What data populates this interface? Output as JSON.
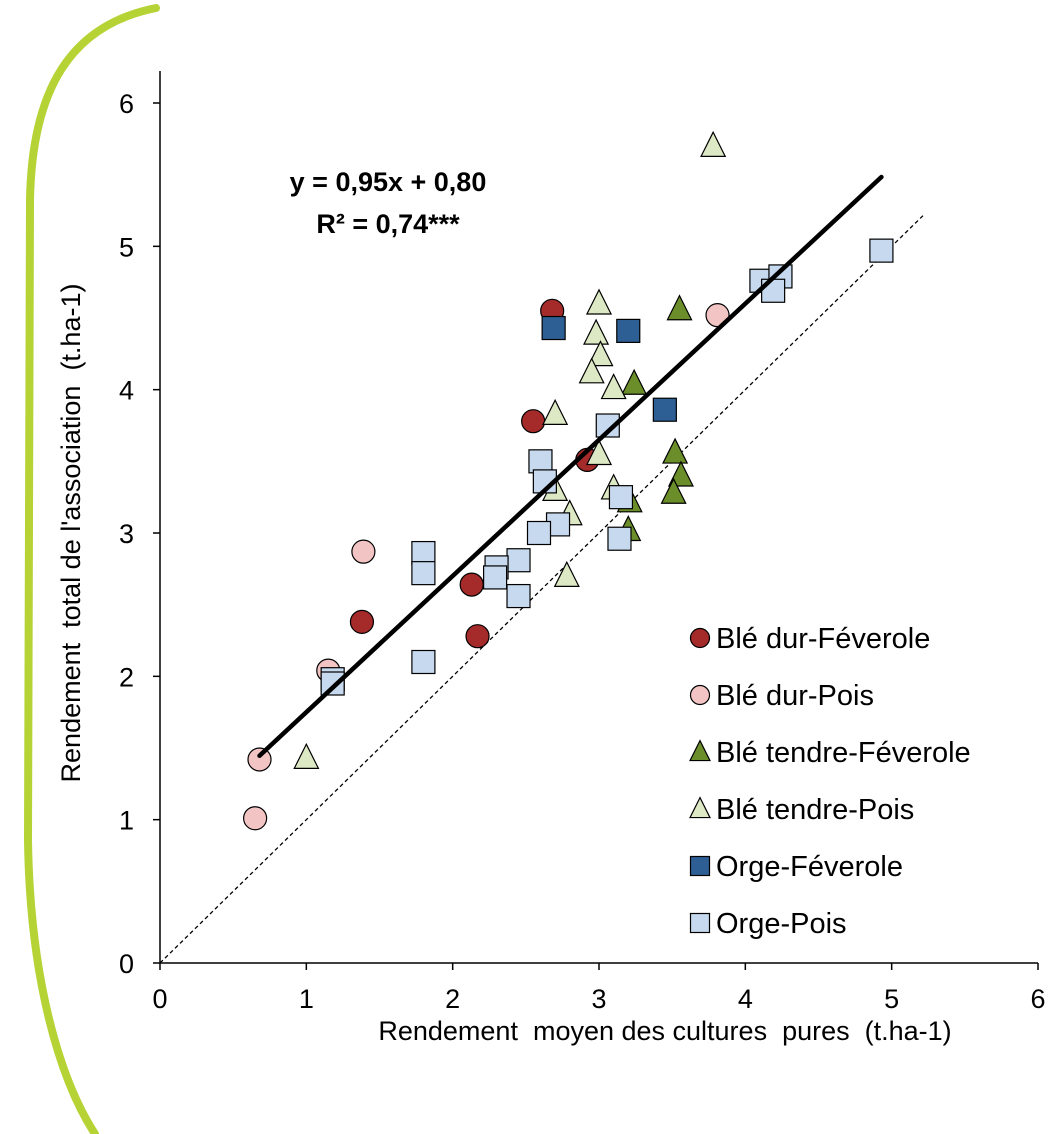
{
  "chart_data": {
    "type": "scatter",
    "xlabel": "Rendement  moyen des cultures  pures  (t.ha-1)",
    "ylabel": "Rendement  total de l'association  (t.ha-1)",
    "xlim": [
      0,
      6
    ],
    "ylim": [
      0,
      6
    ],
    "xticks": [
      "0",
      "1",
      "2",
      "3",
      "4",
      "5",
      "6"
    ],
    "yticks": [
      "0",
      "1",
      "2",
      "3",
      "4",
      "5",
      "6"
    ],
    "grid": false,
    "legend_position": "bottom-right",
    "annotation": {
      "equation": "y = 0,95x + 0,80",
      "r2": "R² = 0,74***"
    },
    "regression": {
      "slope": 0.95,
      "intercept": 0.8,
      "x_range": [
        0.68,
        4.93
      ],
      "color": "#000000"
    },
    "identity_line": {
      "slope": 1,
      "intercept": 0,
      "style": "dashed"
    },
    "series": [
      {
        "name": "Blé dur-Féverole",
        "marker": "circle",
        "color": "#a52a2a",
        "x": [
          2.68,
          2.55,
          2.92,
          1.38,
          2.13,
          2.17
        ],
        "y": [
          4.55,
          3.78,
          3.51,
          2.38,
          2.64,
          2.28
        ]
      },
      {
        "name": "Blé dur-Pois",
        "marker": "circle",
        "color": "#f2c4c4",
        "x": [
          1.39,
          1.15,
          0.68,
          0.65,
          3.81
        ],
        "y": [
          2.87,
          2.04,
          1.42,
          1.01,
          4.52
        ]
      },
      {
        "name": "Blé tendre-Féverole",
        "marker": "triangle",
        "color": "#6b8e2a",
        "x": [
          3.55,
          3.24,
          3.52,
          3.56,
          3.51,
          3.21,
          3.2
        ],
        "y": [
          4.56,
          4.04,
          3.56,
          3.4,
          3.28,
          3.22,
          3.02
        ]
      },
      {
        "name": "Blé tendre-Pois",
        "marker": "triangle",
        "color": "#dde8c4",
        "x": [
          3.78,
          3.0,
          2.98,
          3.01,
          2.95,
          3.1,
          2.7,
          3.0,
          3.1,
          2.8,
          2.7,
          2.78,
          1.0
        ],
        "y": [
          5.7,
          4.6,
          4.39,
          4.24,
          4.12,
          4.01,
          3.83,
          3.55,
          3.31,
          3.13,
          3.3,
          2.7,
          1.43
        ]
      },
      {
        "name": "Orge-Féverole",
        "marker": "square",
        "color": "#2e5f94",
        "x": [
          2.69,
          3.2,
          3.45
        ],
        "y": [
          4.43,
          4.41,
          3.86
        ]
      },
      {
        "name": "Orge-Pois",
        "marker": "square",
        "color": "#c6d9ee",
        "x": [
          4.93,
          4.11,
          4.24,
          4.19,
          3.06,
          2.6,
          2.63,
          3.15,
          2.72,
          2.59,
          3.14,
          2.45,
          2.3,
          2.29,
          2.45,
          1.8,
          1.8,
          1.8,
          1.18,
          1.18
        ],
        "y": [
          4.97,
          4.76,
          4.79,
          4.69,
          3.75,
          3.5,
          3.36,
          3.25,
          3.06,
          3.0,
          2.96,
          2.81,
          2.76,
          2.69,
          2.56,
          2.86,
          2.72,
          2.1,
          1.98,
          1.95
        ]
      }
    ]
  },
  "frame": {
    "border_color": "#b5d334"
  }
}
